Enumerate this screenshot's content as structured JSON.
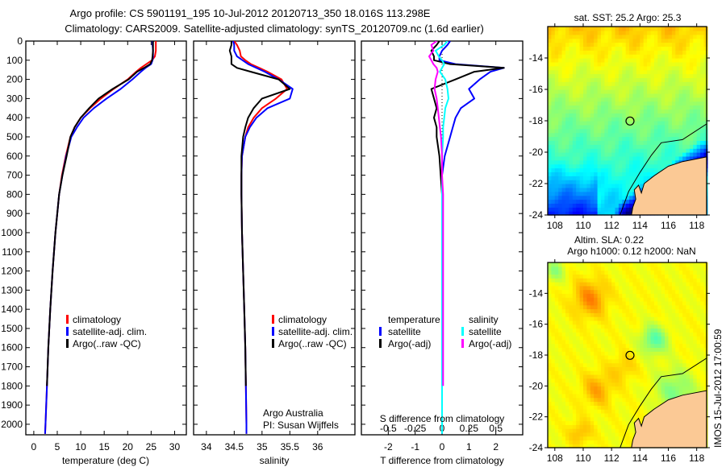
{
  "header": {
    "title_line1": "Argo profile: CS 5901191_195 10-Jul-2012 20120713_350 18.016S 113.298E",
    "title_line2": "Climatology: CARS2009. Satellite-adjusted climatology: synTS_20120709.nc (1.6d earlier)"
  },
  "credits": {
    "line1": "Argo Australia",
    "line2": "PI: Susan Wijffels"
  },
  "timestamp": "IMOS 15-Jul-2012 17:00:59",
  "chart_data": [
    {
      "type": "line",
      "id": "temperature",
      "xlabel": "temperature (deg C)",
      "ylabel": "",
      "xlim": [
        -1.7,
        32.5
      ],
      "ylim": [
        0,
        2055
      ],
      "y_reversed": true,
      "xticks": [
        0,
        5,
        10,
        15,
        20,
        25,
        30
      ],
      "yticks": [
        0,
        100,
        200,
        300,
        400,
        500,
        600,
        700,
        800,
        900,
        1000,
        1100,
        1200,
        1300,
        1400,
        1500,
        1600,
        1700,
        1800,
        1900,
        2000
      ],
      "depth": [
        0,
        20,
        50,
        80,
        100,
        120,
        140,
        160,
        200,
        250,
        300,
        350,
        400,
        450,
        500,
        600,
        700,
        800,
        1000,
        1200,
        1400,
        1600,
        1800,
        2000,
        2050
      ],
      "legend": [
        "climatology",
        "satellite-adj. clim.",
        "Argo(..raw -QC)"
      ],
      "series": [
        {
          "name": "climatology",
          "color": "#ff0000",
          "values": [
            26,
            26,
            26,
            25.8,
            25.2,
            24,
            22.8,
            21.8,
            20,
            17,
            14.3,
            12,
            10,
            8.7,
            7.8,
            6.8,
            6,
            5.4,
            4.6,
            4,
            3.5,
            3.1,
            2.8,
            2.5,
            2.4
          ]
        },
        {
          "name": "satellite-adj. clim.",
          "color": "#0000ff",
          "values": [
            25.3,
            25.3,
            25.4,
            25.4,
            25.3,
            25,
            23.8,
            22.8,
            21,
            18.5,
            15.5,
            12.8,
            10.6,
            9.2,
            8,
            6.9,
            6.1,
            5.4,
            4.6,
            4,
            3.5,
            3.1,
            2.8,
            2.5,
            2.4
          ]
        },
        {
          "name": "Argo(..raw -QC)",
          "color": "#000000",
          "values": [
            25.4,
            25.4,
            25.4,
            25.3,
            25.2,
            24.8,
            23.5,
            22,
            20.2,
            16.8,
            13.8,
            11.8,
            10,
            8.7,
            7.8,
            7,
            6.1,
            5.4,
            4.6,
            4,
            3.5,
            3.1,
            2.8,
            null,
            null
          ]
        }
      ]
    },
    {
      "type": "line",
      "id": "salinity",
      "xlabel": "salinity",
      "xlim": [
        33.77,
        36.67
      ],
      "ylim": [
        0,
        2055
      ],
      "y_reversed": true,
      "xticks": [
        34,
        34.5,
        35,
        35.5,
        36
      ],
      "legend": [
        "climatology",
        "satellite-adj. clim.",
        "Argo(..raw -QC)"
      ],
      "series": [
        {
          "name": "climatology",
          "color": "#ff0000",
          "values": [
            34.5,
            34.55,
            34.6,
            34.62,
            34.7,
            34.8,
            34.95,
            35.1,
            35.35,
            35.45,
            35.25,
            35.0,
            34.85,
            34.75,
            34.7,
            34.64,
            34.63,
            34.63,
            34.64,
            34.66,
            34.68,
            34.7,
            34.71,
            34.72,
            34.72
          ]
        },
        {
          "name": "satellite-adj. clim.",
          "color": "#0000ff",
          "values": [
            34.48,
            34.5,
            34.5,
            34.55,
            34.65,
            34.75,
            34.9,
            35.05,
            35.3,
            35.55,
            35.5,
            35.1,
            34.9,
            34.78,
            34.7,
            34.64,
            34.63,
            34.63,
            34.64,
            34.66,
            34.68,
            34.7,
            34.71,
            34.72,
            34.72
          ]
        },
        {
          "name": "Argo(..raw -QC)",
          "color": "#000000",
          "values": [
            34.45,
            34.45,
            34.42,
            34.45,
            34.45,
            34.45,
            34.55,
            34.8,
            35.3,
            35.5,
            35.0,
            34.85,
            34.75,
            34.7,
            34.66,
            34.63,
            34.63,
            34.63,
            34.64,
            34.66,
            34.68,
            34.7,
            34.71,
            null,
            null
          ]
        }
      ]
    },
    {
      "type": "line",
      "id": "difference",
      "xlabel": "T difference from climatology",
      "xlabel2": "S difference from climatology",
      "xlim": [
        -3,
        3
      ],
      "xticks": [
        -2,
        -1,
        0,
        1,
        2
      ],
      "xticks_S": [
        -0.5,
        -0.25,
        0,
        0.25,
        0.5
      ],
      "S_to_T_scale": 4,
      "ylim": [
        0,
        2055
      ],
      "y_reversed": true,
      "legend_headers": [
        "temperature",
        "salinity"
      ],
      "legend": [
        "satellite",
        "Argo(-adj)",
        "satellite",
        "Argo(-adj)"
      ],
      "series": [
        {
          "name": "T satellite",
          "color": "#0000ff",
          "units": "T",
          "values": [
            0.3,
            0.2,
            0,
            -0.1,
            -0.1,
            0.5,
            2.3,
            1.8,
            1.4,
            1.0,
            1.2,
            0.7,
            0.5,
            0.4,
            0.3,
            0.1,
            0,
            0,
            0,
            0,
            0,
            0,
            0,
            0,
            0
          ]
        },
        {
          "name": "T Argo(-adj)",
          "color": "#000000",
          "units": "T",
          "values": [
            -0.1,
            -0.2,
            -0.4,
            -0.3,
            -0.3,
            0.3,
            2.3,
            1.2,
            0.5,
            -0.4,
            -0.3,
            -0.2,
            -0.3,
            -0.2,
            -0.2,
            -0.1,
            -0.05,
            0,
            0,
            0,
            0,
            0,
            0,
            null,
            null
          ]
        },
        {
          "name": "S satellite",
          "color": "#00ffff",
          "units": "S",
          "values": [
            0.05,
            0.02,
            -0.06,
            -0.03,
            0,
            0.02,
            0,
            -0.02,
            0.03,
            0.05,
            0.06,
            0.03,
            0.02,
            0.01,
            0.01,
            0,
            0,
            0,
            0,
            0,
            0,
            0,
            0,
            0,
            0
          ]
        },
        {
          "name": "S Argo(-adj)",
          "color": "#ff00ff",
          "units": "S",
          "values": [
            -0.05,
            -0.1,
            -0.08,
            -0.12,
            -0.1,
            -0.08,
            -0.05,
            -0.04,
            -0.06,
            -0.07,
            -0.05,
            -0.04,
            -0.03,
            -0.02,
            -0.01,
            0,
            0,
            0.01,
            0.01,
            0.01,
            0.01,
            0.01,
            0.01,
            null,
            null
          ]
        }
      ]
    },
    {
      "type": "heatmap",
      "id": "sst_map",
      "title": "sat. SST: 25.2 Argo: 25.3",
      "xlim": [
        107.5,
        118.7
      ],
      "ylim": [
        -24,
        -12
      ],
      "xticks": [
        108,
        110,
        112,
        114,
        116,
        118
      ],
      "yticks": [
        -14,
        -16,
        -18,
        -20,
        -22,
        -24
      ],
      "profile_location": [
        113.298,
        -18.016
      ]
    },
    {
      "type": "heatmap",
      "id": "sla_map",
      "title": "Altim. SLA: 0.22",
      "subtitle": "Argo h1000: 0.12 h2000: NaN",
      "xlim": [
        107.5,
        118.7
      ],
      "ylim": [
        -24,
        -12
      ],
      "xticks": [
        108,
        110,
        112,
        114,
        116,
        118
      ],
      "yticks": [
        -14,
        -16,
        -18,
        -20,
        -22,
        -24
      ],
      "profile_location": [
        113.298,
        -18.016
      ]
    }
  ]
}
